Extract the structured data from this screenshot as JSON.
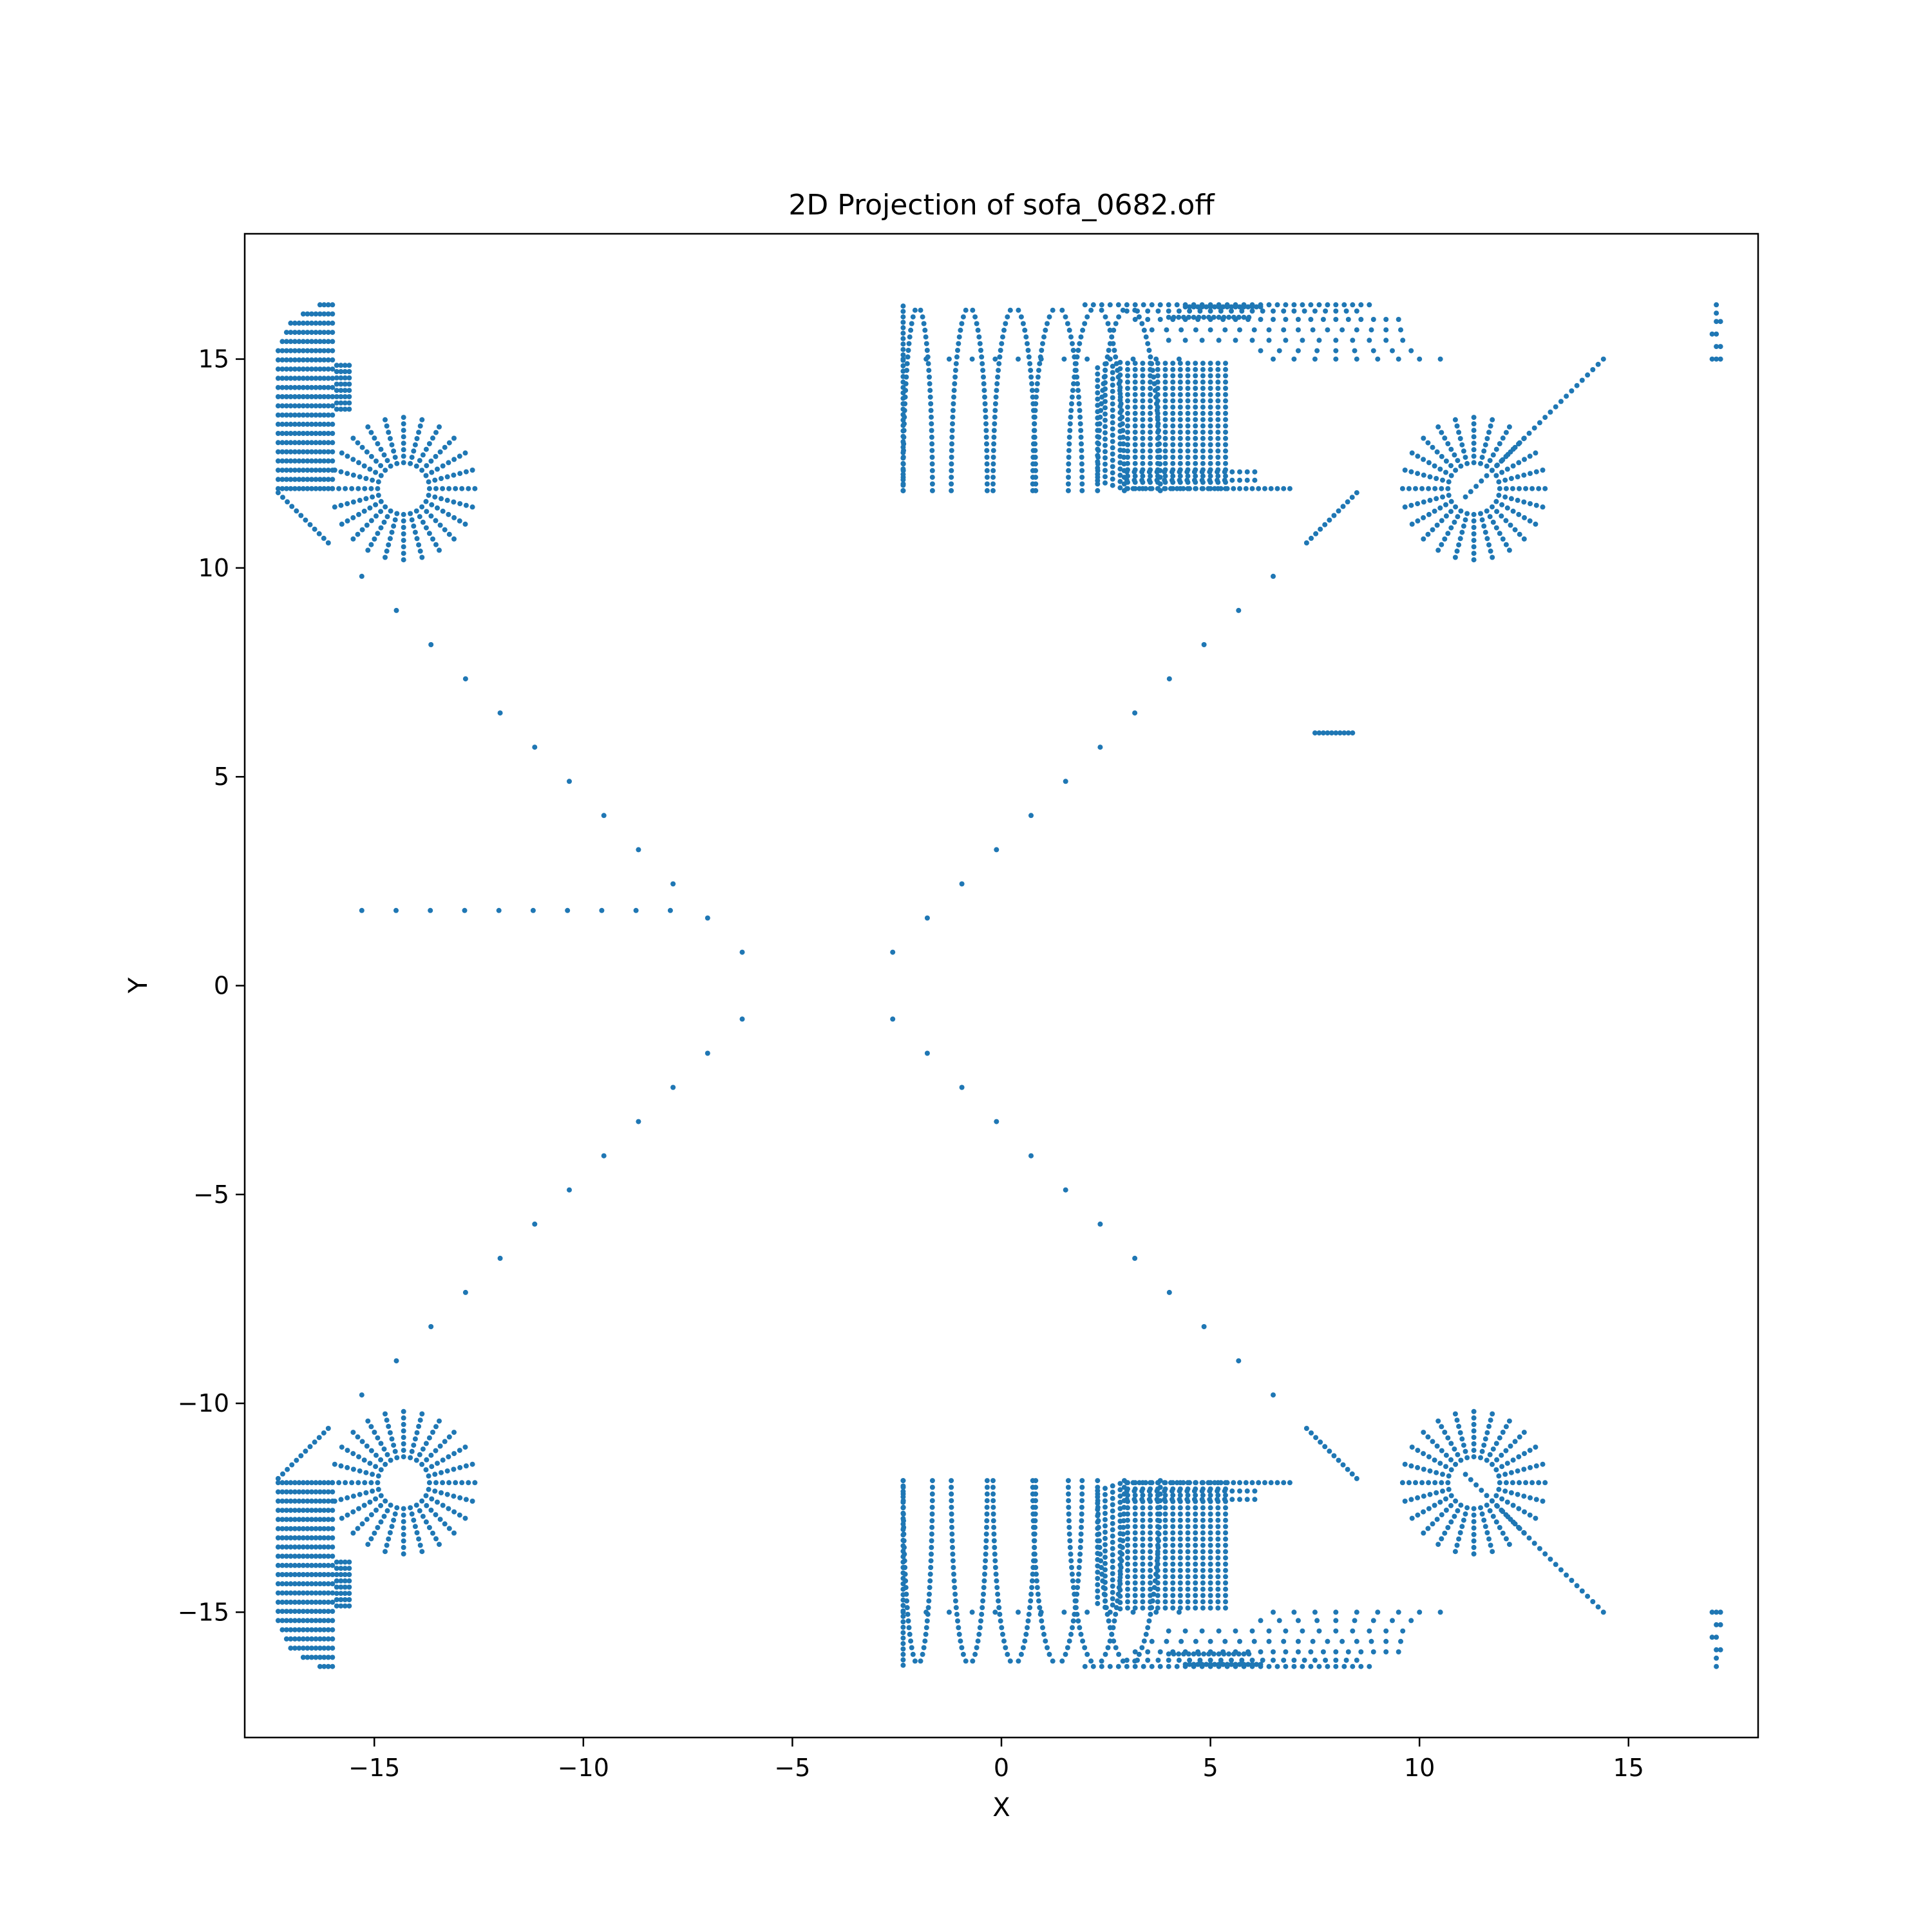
{
  "chart_data": {
    "type": "scatter",
    "title": "2D Projection of sofa_0682.off",
    "xlabel": "X",
    "ylabel": "Y",
    "xlim": [
      -18.1,
      18.1
    ],
    "ylim": [
      -18.0,
      18.0
    ],
    "xticks": [
      -15,
      -10,
      -5,
      0,
      5,
      10,
      15
    ],
    "yticks": [
      -15,
      -10,
      -5,
      0,
      5,
      10,
      15
    ],
    "grid": false,
    "legend": "none",
    "color": "#1f77b4",
    "tick_text": {
      "x": [
        "−15",
        "−10",
        "−5",
        "0",
        "5",
        "10",
        "15"
      ],
      "y": [
        "−15",
        "−10",
        "−5",
        "0",
        "5",
        "10",
        "15"
      ]
    },
    "series": [
      {
        "points": [
          [
            17.1,
            16.3
          ],
          [
            17.1,
            16.1
          ],
          [
            17.1,
            15.9
          ],
          [
            17.1,
            15.6
          ],
          [
            17.1,
            15.3
          ],
          [
            17.1,
            15.0
          ],
          [
            17.2,
            15.9
          ],
          [
            17.2,
            15.3
          ],
          [
            17.2,
            15.0
          ],
          [
            17.0,
            15.0
          ],
          [
            17.0,
            15.6
          ],
          [
            17.1,
            -16.3
          ],
          [
            17.1,
            -16.1
          ],
          [
            17.1,
            -15.9
          ],
          [
            17.1,
            -15.6
          ],
          [
            17.1,
            -15.3
          ],
          [
            17.1,
            -15.0
          ],
          [
            17.2,
            -15.9
          ],
          [
            17.2,
            -15.3
          ],
          [
            17.2,
            -15.0
          ],
          [
            17.0,
            -15.0
          ],
          [
            17.0,
            -15.6
          ],
          [
            7.5,
            6.05
          ],
          [
            7.6,
            6.05
          ],
          [
            7.7,
            6.05
          ],
          [
            7.8,
            6.05
          ],
          [
            7.9,
            6.05
          ],
          [
            8.0,
            6.05
          ],
          [
            8.1,
            6.05
          ],
          [
            8.2,
            6.05
          ],
          [
            8.3,
            6.05
          ],
          [
            8.4,
            6.05
          ]
        ]
      }
    ]
  }
}
